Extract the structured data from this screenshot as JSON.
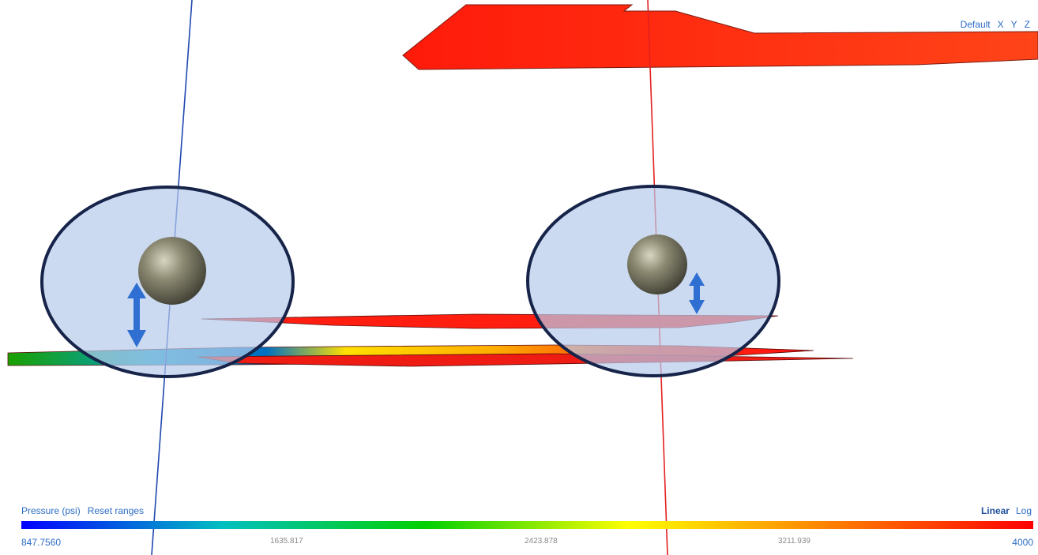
{
  "view_controls": {
    "default": "Default",
    "x": "X",
    "y": "Y",
    "z": "Z"
  },
  "legend": {
    "property": "Pressure (psi)",
    "reset": "Reset ranges",
    "linear": "Linear",
    "log": "Log",
    "min": "847.7560",
    "ticks": [
      "1635.817",
      "2423.878",
      "3211.939"
    ],
    "max": "4000",
    "active_scale": "Linear"
  },
  "colors": {
    "accent": "#2b6cc4",
    "colormap": [
      "#0000ff",
      "#00c0c0",
      "#00d000",
      "#ffff00",
      "#ff8000",
      "#ff0000"
    ],
    "well_left": "#1f47b0",
    "well_right": "#e32020",
    "fracture": "#ff2a1a",
    "highlight_fill": "#c6d6f0",
    "highlight_stroke": "#17244a",
    "arrow": "#2f6fd2",
    "perforation": "#7c7a62"
  }
}
